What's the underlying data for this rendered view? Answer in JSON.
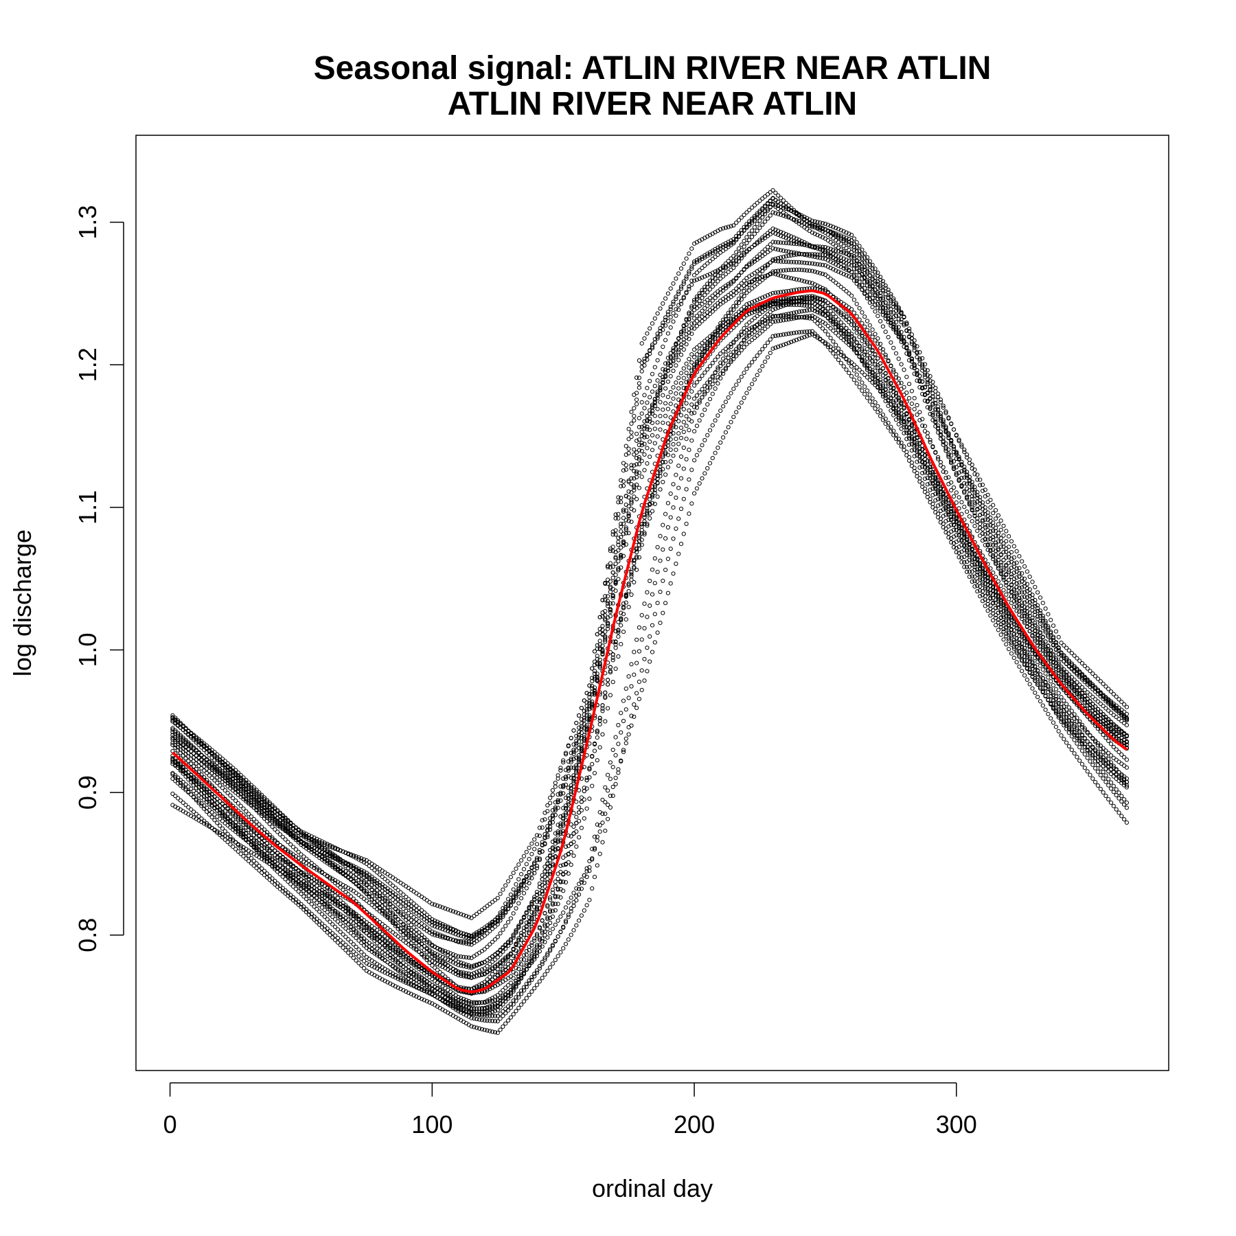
{
  "chart_data": {
    "type": "scatter",
    "title": "Seasonal signal: ATLIN RIVER NEAR ATLIN",
    "subtitle": "ATLIN RIVER NEAR ATLIN",
    "xlabel": "ordinal day",
    "ylabel": "log discharge",
    "xlim": [
      -13,
      381
    ],
    "ylim": [
      0.705,
      1.361
    ],
    "x_ticks": [
      0,
      100,
      200,
      300
    ],
    "x_tick_labels": [
      "0",
      "100",
      "200",
      "300"
    ],
    "y_ticks": [
      0.8,
      0.9,
      1.0,
      1.1,
      1.2,
      1.3
    ],
    "y_tick_labels": [
      "0.8",
      "0.9",
      "1.0",
      "1.1",
      "1.2",
      "1.3"
    ],
    "grid": false,
    "legend": "none",
    "point_color": "#000000",
    "fit_color": "#ff0000",
    "series": [
      {
        "kind": "smooth-fit",
        "x": [
          1,
          10,
          20,
          30,
          40,
          50,
          60,
          70,
          80,
          90,
          100,
          110,
          115,
          120,
          130,
          140,
          150,
          160,
          170,
          180,
          190,
          200,
          210,
          220,
          230,
          240,
          245,
          250,
          260,
          270,
          280,
          290,
          300,
          310,
          320,
          330,
          340,
          350,
          360,
          365
        ],
        "y": [
          0.928,
          0.913,
          0.896,
          0.879,
          0.863,
          0.849,
          0.836,
          0.823,
          0.806,
          0.789,
          0.774,
          0.762,
          0.76,
          0.762,
          0.775,
          0.808,
          0.864,
          0.942,
          1.024,
          1.097,
          1.153,
          1.194,
          1.219,
          1.238,
          1.247,
          1.251,
          1.252,
          1.25,
          1.236,
          1.21,
          1.176,
          1.135,
          1.098,
          1.063,
          1.03,
          1.001,
          0.976,
          0.955,
          0.937,
          0.93
        ]
      },
      {
        "kind": "yearly-points",
        "x": [
          1,
          25,
          50,
          75,
          100,
          115,
          125,
          140,
          160,
          180,
          200,
          215,
          230,
          245,
          260,
          280,
          300,
          320,
          340,
          365
        ],
        "low": [
          0.878,
          0.846,
          0.812,
          0.772,
          0.752,
          0.736,
          0.731,
          0.762,
          0.8,
          0.94,
          1.095,
          1.15,
          1.2,
          1.205,
          1.17,
          1.13,
          1.065,
          1.0,
          0.94,
          0.877
        ],
        "high": [
          0.96,
          0.925,
          0.885,
          0.862,
          0.822,
          0.812,
          0.826,
          0.87,
          0.975,
          1.215,
          1.285,
          1.3,
          1.336,
          1.316,
          1.31,
          1.265,
          1.17,
          1.085,
          1.005,
          0.96
        ]
      }
    ]
  }
}
